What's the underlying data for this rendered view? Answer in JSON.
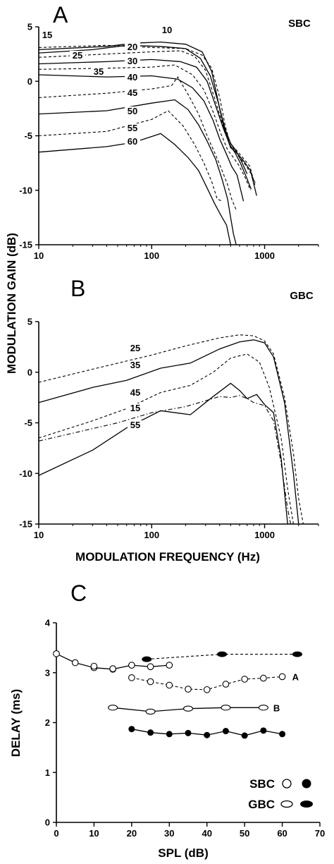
{
  "chart_data": [
    {
      "type": "line",
      "panel_label": "A",
      "panel_tag": "SBC",
      "x_scale": "log",
      "xlim": [
        10,
        3000
      ],
      "ylim": [
        -15,
        5
      ],
      "x_tick_labels": [
        "10",
        "100",
        "1000"
      ],
      "y_tick_labels": [
        "5",
        "0",
        "-5",
        "-10",
        "-15"
      ],
      "y_ticks": [
        5,
        0,
        -5,
        -10,
        -15
      ],
      "x_ticks": [
        10,
        100,
        1000
      ],
      "series": [
        {
          "label": "10",
          "style": "solid",
          "x": [
            10,
            40,
            70,
            120,
            200,
            280,
            340,
            400,
            450,
            500,
            560,
            620,
            700
          ],
          "y": [
            2.9,
            3.2,
            3.5,
            3.6,
            3.4,
            2.7,
            0.9,
            -2.5,
            -4.5,
            -5.7,
            -6.4,
            -7.3,
            -8.5
          ]
        },
        {
          "label": "15",
          "style": "dash",
          "x": [
            10,
            40,
            100,
            200,
            280,
            340,
            400,
            450,
            500,
            560,
            640,
            740,
            820
          ],
          "y": [
            3.1,
            3.3,
            3.1,
            3.0,
            2.4,
            1.2,
            -1.5,
            -4.2,
            -5.8,
            -6.3,
            -7.0,
            -7.8,
            -9.5
          ]
        },
        {
          "label": "20",
          "style": "solid",
          "x": [
            10,
            30,
            60,
            120,
            200,
            270,
            330,
            390,
            440,
            500,
            560,
            640,
            750,
            850
          ],
          "y": [
            2.6,
            2.9,
            3.3,
            3.2,
            3.0,
            2.1,
            0.5,
            -2.0,
            -4.4,
            -6.1,
            -6.5,
            -7.2,
            -8.2,
            -10.5
          ]
        },
        {
          "label": "25",
          "style": "dash",
          "x": [
            10,
            40,
            100,
            180,
            240,
            300,
            360,
            420,
            480,
            540,
            600,
            680,
            760,
            840
          ],
          "y": [
            2.2,
            2.5,
            2.7,
            2.8,
            2.3,
            1.0,
            -1.5,
            -3.8,
            -5.4,
            -6.3,
            -7.0,
            -7.7,
            -8.5,
            -9.5
          ]
        },
        {
          "label": "30",
          "style": "solid",
          "x": [
            10,
            40,
            100,
            180,
            250,
            310,
            370,
            430,
            490,
            550,
            610,
            690,
            760
          ],
          "y": [
            1.6,
            1.8,
            2.0,
            1.8,
            1.3,
            0.0,
            -2.3,
            -4.3,
            -5.8,
            -6.6,
            -7.5,
            -8.8,
            -9.9
          ]
        },
        {
          "label": "35",
          "style": "dash",
          "x": [
            10,
            40,
            100,
            160,
            230,
            290,
            350,
            410,
            470,
            530,
            590,
            670,
            750
          ],
          "y": [
            1.1,
            1.2,
            1.3,
            1.5,
            0.6,
            -0.8,
            -2.8,
            -4.8,
            -6.3,
            -7.0,
            -7.7,
            -8.8,
            -10.0
          ]
        },
        {
          "label": "40",
          "style": "solid",
          "x": [
            10,
            40,
            100,
            170,
            230,
            290,
            350,
            400,
            460,
            510,
            570,
            650
          ],
          "y": [
            0.6,
            0.4,
            0.5,
            0.2,
            -0.6,
            -1.8,
            -3.6,
            -5.3,
            -6.7,
            -7.8,
            -8.6,
            -11.0
          ]
        },
        {
          "label": "45",
          "style": "dash",
          "x": [
            10,
            40,
            100,
            150,
            170,
            210,
            260,
            310,
            370,
            420,
            470,
            510,
            560
          ],
          "y": [
            -1.5,
            -1.1,
            -0.7,
            -0.4,
            0.4,
            -1.2,
            -3.0,
            -5.0,
            -6.8,
            -8.2,
            -9.5,
            -10.8,
            -11.8
          ]
        },
        {
          "label": "50",
          "style": "solid",
          "x": [
            10,
            40,
            100,
            160,
            210,
            260,
            310,
            370,
            420,
            470,
            500,
            530,
            560
          ],
          "y": [
            -3.0,
            -2.7,
            -2.0,
            -1.7,
            -2.6,
            -4.0,
            -5.5,
            -7.2,
            -9.0,
            -10.8,
            -12.5,
            -14.0,
            -15.0
          ]
        },
        {
          "label": "55",
          "style": "dash",
          "x": [
            10,
            40,
            100,
            140,
            190,
            240,
            290,
            340,
            380,
            420
          ],
          "y": [
            -5.0,
            -4.6,
            -3.5,
            -2.7,
            -4.1,
            -5.8,
            -7.5,
            -9.2,
            -10.8,
            -11.0
          ]
        },
        {
          "label": "60",
          "style": "solid",
          "x": [
            10,
            40,
            70,
            120,
            160,
            210,
            260,
            310,
            360,
            410,
            460,
            500
          ],
          "y": [
            -6.5,
            -6.0,
            -5.6,
            -4.8,
            -5.8,
            -7.0,
            -8.2,
            -9.8,
            -11.2,
            -12.3,
            -13.2,
            -15.0
          ]
        }
      ]
    },
    {
      "type": "line",
      "panel_label": "B",
      "panel_tag": "GBC",
      "x_scale": "log",
      "xlim": [
        10,
        3000
      ],
      "ylim": [
        -15,
        5
      ],
      "x_tick_labels": [
        "10",
        "100",
        "1000"
      ],
      "y_tick_labels": [
        "5",
        "0",
        "-5",
        "-10",
        "-15"
      ],
      "y_ticks": [
        5,
        0,
        -5,
        -10,
        -15
      ],
      "x_ticks": [
        10,
        100,
        1000
      ],
      "xlabel": "MODULATION FREQUENCY (Hz)",
      "series": [
        {
          "label": "25",
          "style": "dash",
          "x": [
            10,
            30,
            100,
            200,
            400,
            600,
            800,
            1000,
            1200,
            1500,
            1800,
            2000,
            2200
          ],
          "y": [
            -1.0,
            0.3,
            1.7,
            2.6,
            3.4,
            3.7,
            3.6,
            3.1,
            1.8,
            -2.5,
            -8.0,
            -12.5,
            -15.0
          ]
        },
        {
          "label": "35",
          "style": "solid",
          "x": [
            10,
            30,
            60,
            120,
            220,
            400,
            600,
            800,
            1000,
            1200,
            1500,
            1800,
            2000
          ],
          "y": [
            -3.0,
            -1.5,
            -0.8,
            0.4,
            0.9,
            2.3,
            3.0,
            3.2,
            2.9,
            1.5,
            -3.0,
            -10.0,
            -15.0
          ]
        },
        {
          "label": "45",
          "style": "dash",
          "x": [
            10,
            30,
            60,
            120,
            220,
            350,
            500,
            700,
            900,
            1100,
            1400,
            1600,
            1800
          ],
          "y": [
            -6.5,
            -4.8,
            -3.6,
            -2.0,
            -1.3,
            0.0,
            1.4,
            1.8,
            1.0,
            -1.5,
            -6.5,
            -11.5,
            -15.0
          ]
        },
        {
          "label": "15",
          "style": "dashdot",
          "x": [
            10,
            50,
            100,
            200,
            400,
            500,
            600,
            700,
            800,
            1000,
            1200,
            1400,
            1600,
            1700
          ],
          "y": [
            -6.8,
            -5.0,
            -4.0,
            -3.4,
            -2.4,
            -2.5,
            -2.3,
            -2.6,
            -3.0,
            -3.3,
            -4.8,
            -9.0,
            -13.5,
            -15.0
          ]
        },
        {
          "label": "55",
          "style": "solid",
          "x": [
            10,
            30,
            60,
            120,
            220,
            350,
            500,
            600,
            700,
            850,
            1000,
            1200,
            1400,
            1600
          ],
          "y": [
            -10.2,
            -7.7,
            -5.5,
            -3.8,
            -4.2,
            -2.4,
            -1.1,
            -1.8,
            -2.6,
            -2.2,
            -3.2,
            -4.0,
            -8.5,
            -15.0
          ]
        }
      ]
    },
    {
      "type": "scatter",
      "panel_label": "C",
      "xlabel": "SPL (dB)",
      "ylabel": "DELAY (ms)",
      "xlim": [
        0,
        70
      ],
      "ylim": [
        0,
        4
      ],
      "x_tick_labels": [
        "0",
        "10",
        "20",
        "30",
        "40",
        "50",
        "60",
        "70"
      ],
      "y_tick_labels": [
        "0",
        "1",
        "2",
        "3",
        "4"
      ],
      "x_ticks": [
        0,
        10,
        20,
        30,
        40,
        50,
        60,
        70
      ],
      "y_ticks": [
        0,
        1,
        2,
        3,
        4
      ],
      "legend": [
        {
          "label": "SBC",
          "markers": [
            "open-circle",
            "filled-circle"
          ]
        },
        {
          "label": "GBC",
          "markers": [
            "open-ellipse",
            "filled-ellipse"
          ]
        }
      ],
      "series": [
        {
          "group": "SBC",
          "marker": "open-circle",
          "style": "solid",
          "x": [
            0,
            5,
            10,
            15,
            20,
            25,
            30
          ],
          "y": [
            3.38,
            3.2,
            3.1,
            3.07,
            3.15,
            3.12,
            3.15
          ],
          "extra_x": [
            10,
            15
          ],
          "extra_y": [
            3.13,
            3.08
          ]
        },
        {
          "group": "SBC",
          "marker": "open-circle",
          "style": "dash",
          "label": "A",
          "x": [
            20,
            25,
            30,
            35,
            40,
            45,
            50,
            55,
            60
          ],
          "y": [
            2.9,
            2.82,
            2.75,
            2.67,
            2.66,
            2.77,
            2.87,
            2.89,
            2.92
          ]
        },
        {
          "group": "SBC",
          "marker": "filled-circle",
          "style": "solid",
          "x": [
            20,
            25,
            30,
            35,
            40,
            45,
            50,
            55,
            60
          ],
          "y": [
            1.87,
            1.8,
            1.77,
            1.79,
            1.75,
            1.83,
            1.74,
            1.84,
            1.77
          ]
        },
        {
          "group": "GBC",
          "marker": "open-ellipse",
          "style": "solid",
          "label": "B",
          "x": [
            15,
            25,
            35,
            45,
            55
          ],
          "y": [
            2.3,
            2.22,
            2.28,
            2.3,
            2.3
          ]
        },
        {
          "group": "GBC",
          "marker": "filled-ellipse",
          "style": "dash",
          "x": [
            24,
            44,
            64
          ],
          "y": [
            3.27,
            3.37,
            3.37
          ]
        }
      ]
    }
  ],
  "shared_ylabel": "MODULATION GAIN (dB)"
}
